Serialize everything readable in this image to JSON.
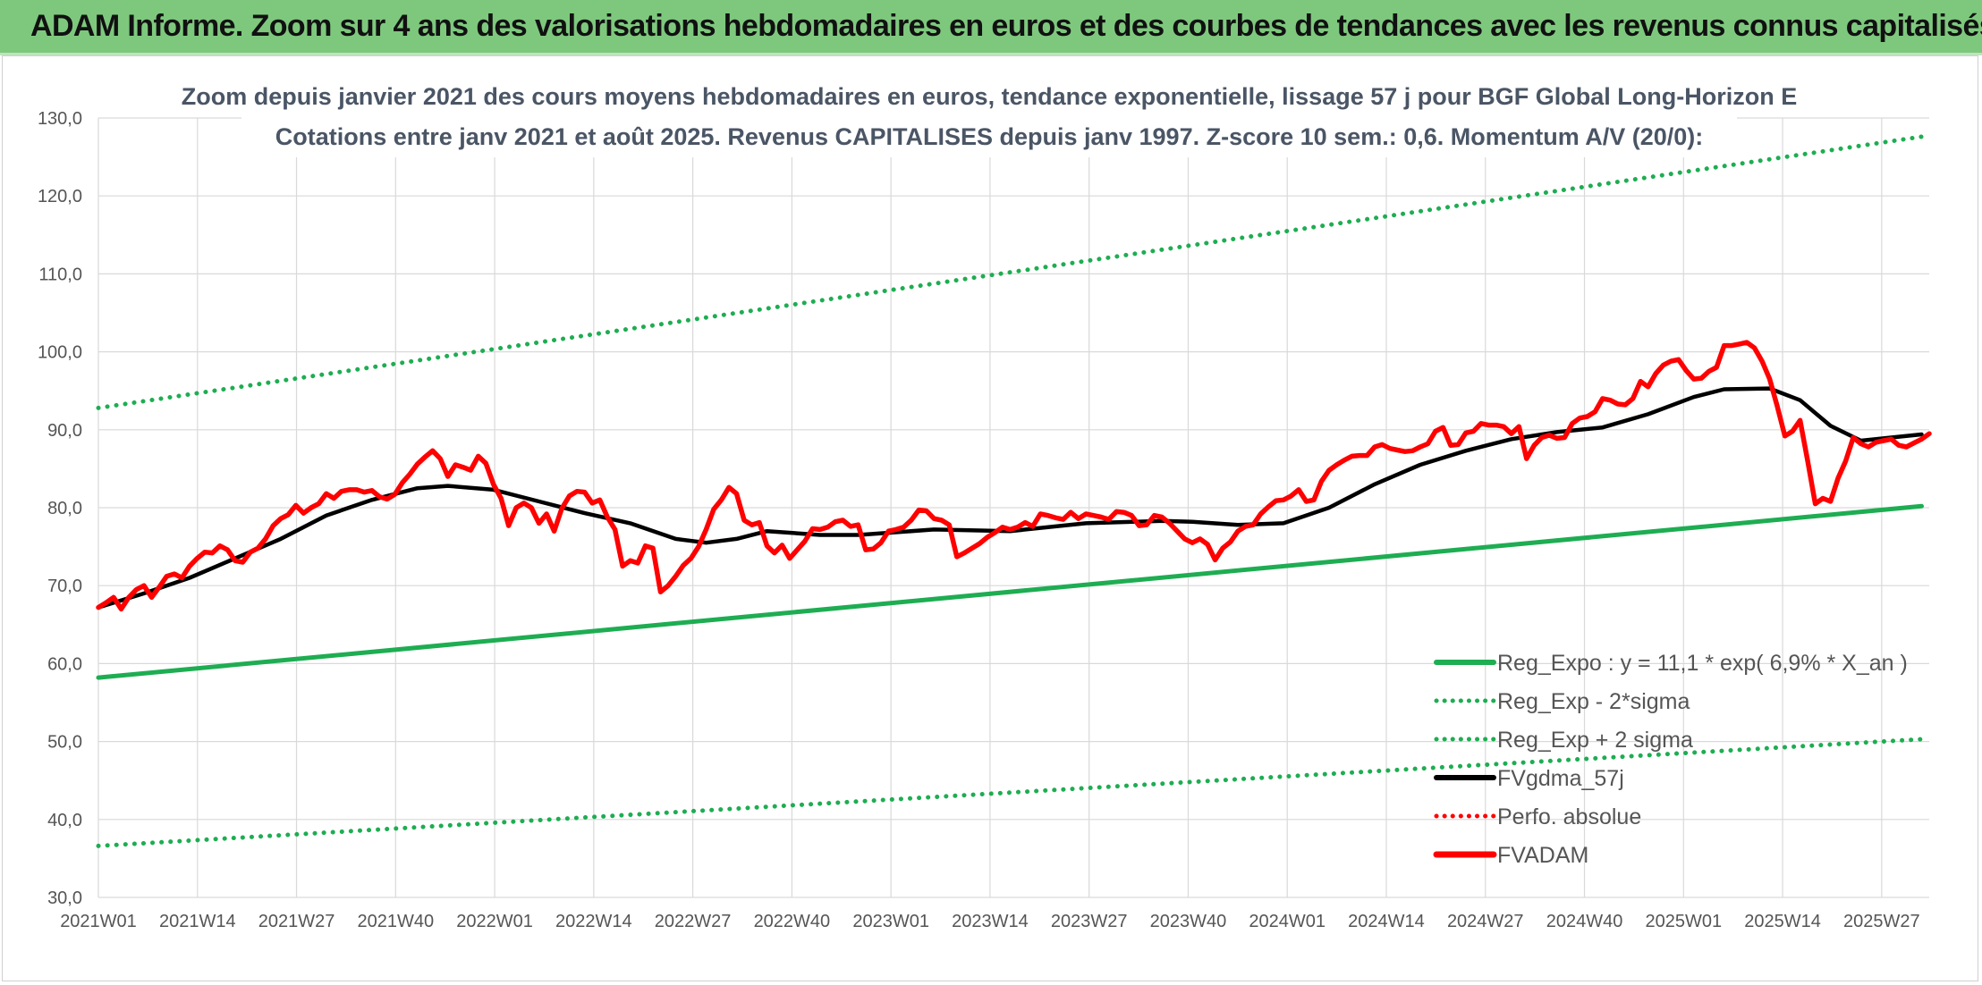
{
  "header": {
    "title": "ADAM Informe. Zoom sur 4 ans des valorisations hebdomadaires en euros et des courbes de tendances avec les revenus connus capitalisés"
  },
  "chart_data": {
    "type": "line",
    "title": "Zoom depuis janvier 2021 des cours moyens hebdomadaires en euros, tendance exponentielle, lissage 57 j pour BGF Global Long-Horizon E",
    "subtitle": "Cotations entre janv 2021 et août 2025. Revenus CAPITALISES depuis janv 1997. Z-score 10 sem.: 0,6. Momentum A/V (20/0):",
    "ylim": [
      30,
      130
    ],
    "y_ticks": [
      "30,0",
      "40,0",
      "50,0",
      "60,0",
      "70,0",
      "80,0",
      "90,0",
      "100,0",
      "110,0",
      "120,0",
      "130,0"
    ],
    "x_tick_labels": [
      "2021W01",
      "2021W14",
      "2021W27",
      "2021W40",
      "2022W01",
      "2022W14",
      "2022W27",
      "2022W40",
      "2023W01",
      "2023W14",
      "2023W27",
      "2023W40",
      "2024W01",
      "2024W14",
      "2024W27",
      "2024W40",
      "2025W01",
      "2025W14",
      "2025W27"
    ],
    "x_range_weeks": [
      0,
      241
    ],
    "grid": true,
    "legend_position": "bottom-right",
    "series": [
      {
        "name": "Reg_Expo : y = 11,1 * exp( 6,9% *  X_an )",
        "color": "#1ead52",
        "style": "solid",
        "points": [
          [
            0,
            58.2
          ],
          [
            240,
            80.2
          ]
        ]
      },
      {
        "name": "Reg_Exp - 2*sigma",
        "color": "#1ead52",
        "style": "dotted",
        "points": [
          [
            0,
            36.6
          ],
          [
            240,
            50.3
          ]
        ]
      },
      {
        "name": "Reg_Exp + 2 sigma",
        "color": "#1ead52",
        "style": "dotted",
        "points": [
          [
            0,
            92.8
          ],
          [
            240,
            127.6
          ]
        ]
      },
      {
        "name": "FVgdma_57j",
        "color": "#000000",
        "style": "solid",
        "points": [
          [
            0,
            67.2
          ],
          [
            6,
            69
          ],
          [
            12,
            71
          ],
          [
            18,
            73.5
          ],
          [
            24,
            76
          ],
          [
            30,
            79
          ],
          [
            36,
            81
          ],
          [
            42,
            82.5
          ],
          [
            46,
            82.8
          ],
          [
            52,
            82.3
          ],
          [
            58,
            80.8
          ],
          [
            64,
            79.3
          ],
          [
            70,
            78
          ],
          [
            76,
            76
          ],
          [
            80,
            75.5
          ],
          [
            84,
            76
          ],
          [
            88,
            77
          ],
          [
            95,
            76.5
          ],
          [
            100,
            76.5
          ],
          [
            110,
            77.2
          ],
          [
            120,
            77
          ],
          [
            130,
            78
          ],
          [
            140,
            78.3
          ],
          [
            144,
            78.2
          ],
          [
            150,
            77.8
          ],
          [
            156,
            78
          ],
          [
            162,
            80
          ],
          [
            168,
            83
          ],
          [
            174,
            85.5
          ],
          [
            180,
            87.3
          ],
          [
            186,
            88.8
          ],
          [
            192,
            89.7
          ],
          [
            198,
            90.3
          ],
          [
            204,
            92
          ],
          [
            210,
            94.2
          ],
          [
            214,
            95.2
          ],
          [
            220,
            95.3
          ],
          [
            224,
            93.8
          ],
          [
            228,
            90.5
          ],
          [
            232,
            88.6
          ],
          [
            236,
            89
          ],
          [
            240,
            89.4
          ],
          [
            248,
            89.7
          ],
          [
            252,
            90
          ]
        ]
      },
      {
        "name": "Perfo. absolue",
        "color": "#ff0000",
        "style": "dotted",
        "points": []
      },
      {
        "name": "FVADAM",
        "color": "#ff0000",
        "style": "solid",
        "points": [
          [
            0,
            67.2
          ],
          [
            1,
            67.8
          ],
          [
            2,
            68.5
          ],
          [
            3,
            67.0
          ],
          [
            4,
            68.5
          ],
          [
            5,
            69.5
          ],
          [
            6,
            70.0
          ],
          [
            7,
            68.5
          ],
          [
            8,
            69.8
          ],
          [
            9,
            71.2
          ],
          [
            10,
            71.5
          ],
          [
            11,
            71.0
          ],
          [
            12,
            72.5
          ],
          [
            13,
            73.5
          ],
          [
            14,
            74.3
          ],
          [
            15,
            74.2
          ],
          [
            16,
            75.1
          ],
          [
            17,
            74.6
          ],
          [
            18,
            73.2
          ],
          [
            19,
            73.0
          ],
          [
            20,
            74.3
          ],
          [
            21,
            74.8
          ],
          [
            22,
            76.0
          ],
          [
            23,
            77.7
          ],
          [
            24,
            78.6
          ],
          [
            25,
            79.1
          ],
          [
            26,
            80.3
          ],
          [
            27,
            79.3
          ],
          [
            28,
            80.0
          ],
          [
            29,
            80.5
          ],
          [
            30,
            81.8
          ],
          [
            31,
            81.2
          ],
          [
            32,
            82.1
          ],
          [
            33,
            82.3
          ],
          [
            34,
            82.3
          ],
          [
            35,
            82.0
          ],
          [
            36,
            82.2
          ],
          [
            37,
            81.4
          ],
          [
            38,
            81.1
          ],
          [
            39,
            81.7
          ],
          [
            40,
            83.2
          ],
          [
            41,
            84.3
          ],
          [
            42,
            85.6
          ],
          [
            43,
            86.5
          ],
          [
            44,
            87.3
          ],
          [
            45,
            86.3
          ],
          [
            46,
            84.0
          ],
          [
            47,
            85.5
          ],
          [
            48,
            85.2
          ],
          [
            49,
            84.8
          ],
          [
            50,
            86.6
          ],
          [
            51,
            85.7
          ],
          [
            52,
            83.0
          ],
          [
            53,
            81.2
          ],
          [
            54,
            77.7
          ],
          [
            55,
            80.0
          ],
          [
            56,
            80.6
          ],
          [
            57,
            80.0
          ],
          [
            58,
            78.0
          ],
          [
            59,
            79.2
          ],
          [
            60,
            77.0
          ],
          [
            61,
            79.9
          ],
          [
            62,
            81.5
          ],
          [
            63,
            82.1
          ],
          [
            64,
            82.0
          ],
          [
            65,
            80.6
          ],
          [
            66,
            81.0
          ],
          [
            67,
            78.8
          ],
          [
            68,
            77.2
          ],
          [
            69,
            72.5
          ],
          [
            70,
            73.2
          ],
          [
            71,
            72.9
          ],
          [
            72,
            75.1
          ],
          [
            73,
            74.8
          ],
          [
            74,
            69.2
          ],
          [
            75,
            70.0
          ],
          [
            76,
            71.2
          ],
          [
            77,
            72.6
          ],
          [
            78,
            73.5
          ],
          [
            79,
            75.0
          ],
          [
            80,
            77.2
          ],
          [
            81,
            79.8
          ],
          [
            82,
            81.0
          ],
          [
            83,
            82.6
          ],
          [
            84,
            81.8
          ],
          [
            85,
            78.4
          ],
          [
            86,
            77.8
          ],
          [
            87,
            78.1
          ],
          [
            88,
            75.1
          ],
          [
            89,
            74.2
          ],
          [
            90,
            75.2
          ],
          [
            91,
            73.5
          ],
          [
            92,
            74.6
          ],
          [
            93,
            75.7
          ],
          [
            94,
            77.3
          ],
          [
            95,
            77.2
          ],
          [
            96,
            77.5
          ],
          [
            97,
            78.2
          ],
          [
            98,
            78.4
          ],
          [
            99,
            77.6
          ],
          [
            100,
            77.8
          ],
          [
            101,
            74.6
          ],
          [
            102,
            74.7
          ],
          [
            103,
            75.5
          ],
          [
            104,
            77.0
          ],
          [
            105,
            77.2
          ],
          [
            106,
            77.5
          ],
          [
            107,
            78.4
          ],
          [
            108,
            79.7
          ],
          [
            109,
            79.6
          ],
          [
            110,
            78.6
          ],
          [
            111,
            78.4
          ],
          [
            112,
            77.8
          ],
          [
            113,
            73.7
          ],
          [
            114,
            74.2
          ],
          [
            115,
            74.8
          ],
          [
            116,
            75.4
          ],
          [
            117,
            76.2
          ],
          [
            118,
            76.8
          ],
          [
            119,
            77.5
          ],
          [
            120,
            77.2
          ],
          [
            121,
            77.5
          ],
          [
            122,
            78.1
          ],
          [
            123,
            77.6
          ],
          [
            124,
            79.2
          ],
          [
            125,
            79.0
          ],
          [
            126,
            78.7
          ],
          [
            127,
            78.5
          ],
          [
            128,
            79.4
          ],
          [
            129,
            78.6
          ],
          [
            130,
            79.2
          ],
          [
            131,
            79.0
          ],
          [
            132,
            78.8
          ],
          [
            133,
            78.5
          ],
          [
            134,
            79.5
          ],
          [
            135,
            79.4
          ],
          [
            136,
            79.0
          ],
          [
            137,
            77.7
          ],
          [
            138,
            77.8
          ],
          [
            139,
            79.0
          ],
          [
            140,
            78.8
          ],
          [
            141,
            78.0
          ],
          [
            142,
            77.0
          ],
          [
            143,
            76.0
          ],
          [
            144,
            75.5
          ],
          [
            145,
            76.0
          ],
          [
            146,
            75.3
          ],
          [
            147,
            73.3
          ],
          [
            148,
            74.8
          ],
          [
            149,
            75.6
          ],
          [
            150,
            77.0
          ],
          [
            151,
            77.6
          ],
          [
            152,
            77.8
          ],
          [
            153,
            79.2
          ],
          [
            154,
            80.1
          ],
          [
            155,
            80.9
          ],
          [
            156,
            81.0
          ],
          [
            157,
            81.5
          ],
          [
            158,
            82.3
          ],
          [
            159,
            80.8
          ],
          [
            160,
            81.0
          ],
          [
            161,
            83.4
          ],
          [
            162,
            84.8
          ],
          [
            163,
            85.5
          ],
          [
            164,
            86.1
          ],
          [
            165,
            86.6
          ],
          [
            166,
            86.7
          ],
          [
            167,
            86.7
          ],
          [
            168,
            87.8
          ],
          [
            169,
            88.1
          ],
          [
            170,
            87.6
          ],
          [
            171,
            87.4
          ],
          [
            172,
            87.2
          ],
          [
            173,
            87.3
          ],
          [
            174,
            87.8
          ],
          [
            175,
            88.2
          ],
          [
            176,
            89.8
          ],
          [
            177,
            90.3
          ],
          [
            178,
            88.0
          ],
          [
            179,
            88.1
          ],
          [
            180,
            89.6
          ],
          [
            181,
            89.8
          ],
          [
            182,
            90.8
          ],
          [
            183,
            90.6
          ],
          [
            184,
            90.6
          ],
          [
            185,
            90.4
          ],
          [
            186,
            89.5
          ],
          [
            187,
            90.4
          ],
          [
            188,
            86.3
          ],
          [
            189,
            88.0
          ],
          [
            190,
            89.0
          ],
          [
            191,
            89.3
          ],
          [
            192,
            88.9
          ],
          [
            193,
            89.0
          ],
          [
            194,
            90.8
          ],
          [
            195,
            91.5
          ],
          [
            196,
            91.7
          ],
          [
            197,
            92.3
          ],
          [
            198,
            94.0
          ],
          [
            199,
            93.8
          ],
          [
            200,
            93.3
          ],
          [
            201,
            93.2
          ],
          [
            202,
            94.0
          ],
          [
            203,
            96.2
          ],
          [
            204,
            95.5
          ],
          [
            205,
            97.2
          ],
          [
            206,
            98.3
          ],
          [
            207,
            98.8
          ],
          [
            208,
            99.0
          ],
          [
            209,
            97.6
          ],
          [
            210,
            96.5
          ],
          [
            211,
            96.6
          ],
          [
            212,
            97.5
          ],
          [
            213,
            98.0
          ],
          [
            214,
            100.8
          ],
          [
            215,
            100.8
          ],
          [
            216,
            101.0
          ],
          [
            217,
            101.2
          ],
          [
            218,
            100.5
          ],
          [
            219,
            98.8
          ],
          [
            220,
            96.5
          ],
          [
            221,
            93.0
          ],
          [
            222,
            89.2
          ],
          [
            223,
            89.8
          ],
          [
            224,
            91.2
          ],
          [
            225,
            86.0
          ],
          [
            226,
            80.5
          ],
          [
            227,
            81.2
          ],
          [
            228,
            80.8
          ],
          [
            229,
            83.8
          ],
          [
            230,
            86.0
          ],
          [
            231,
            89.0
          ],
          [
            232,
            88.2
          ],
          [
            233,
            87.8
          ],
          [
            234,
            88.4
          ],
          [
            235,
            88.6
          ],
          [
            236,
            88.8
          ],
          [
            237,
            88.0
          ],
          [
            238,
            87.8
          ],
          [
            239,
            88.3
          ],
          [
            240,
            88.8
          ],
          [
            241,
            89.5
          ],
          [
            242,
            89.0
          ],
          [
            243,
            89.5
          ],
          [
            244,
            90.9
          ],
          [
            245,
            89.2
          ],
          [
            246,
            89.4
          ],
          [
            247,
            89.7
          ],
          [
            248,
            89.8
          ],
          [
            249,
            90.1
          ],
          [
            250,
            90.3
          ],
          [
            251,
            90.2
          ],
          [
            252,
            90.5
          ]
        ]
      }
    ]
  }
}
